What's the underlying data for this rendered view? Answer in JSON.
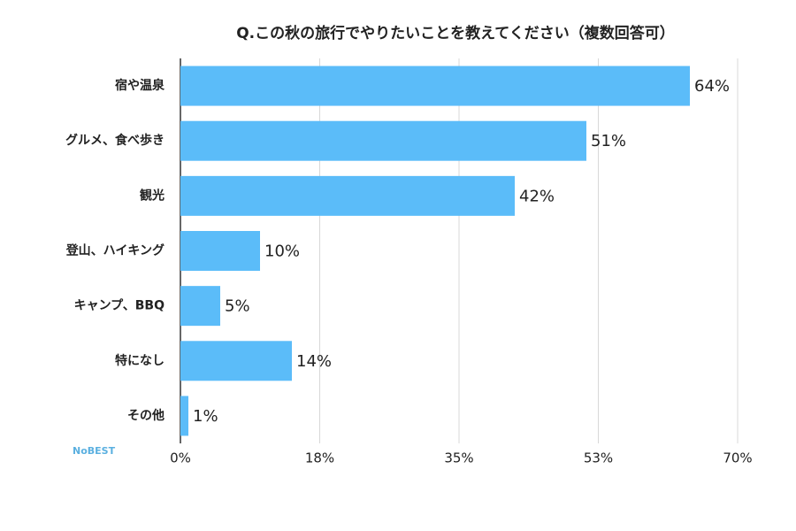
{
  "chart_data": {
    "type": "barh",
    "title": "Q.この秋の旅行でやりたいことを教えてください（複数回答可）",
    "categories": [
      "宿や温泉",
      "グルメ、食べ歩き",
      "観光",
      "登山、ハイキング",
      "キャンプ、BBQ",
      "特になし",
      "その他"
    ],
    "values": [
      64,
      51,
      42,
      10,
      5,
      14,
      1
    ],
    "value_labels": [
      "64%",
      "51%",
      "42%",
      "10%",
      "5%",
      "14%",
      "1%"
    ],
    "color": "#5bbcf9",
    "xlim": [
      0,
      70
    ],
    "xticks": [
      {
        "value": 0,
        "label": "0%"
      },
      {
        "value": 17.5,
        "label": "18%"
      },
      {
        "value": 35,
        "label": "35%"
      },
      {
        "value": 52.5,
        "label": "53%"
      },
      {
        "value": 70,
        "label": "70%"
      }
    ],
    "grid": true
  },
  "logo": "NoBEST"
}
